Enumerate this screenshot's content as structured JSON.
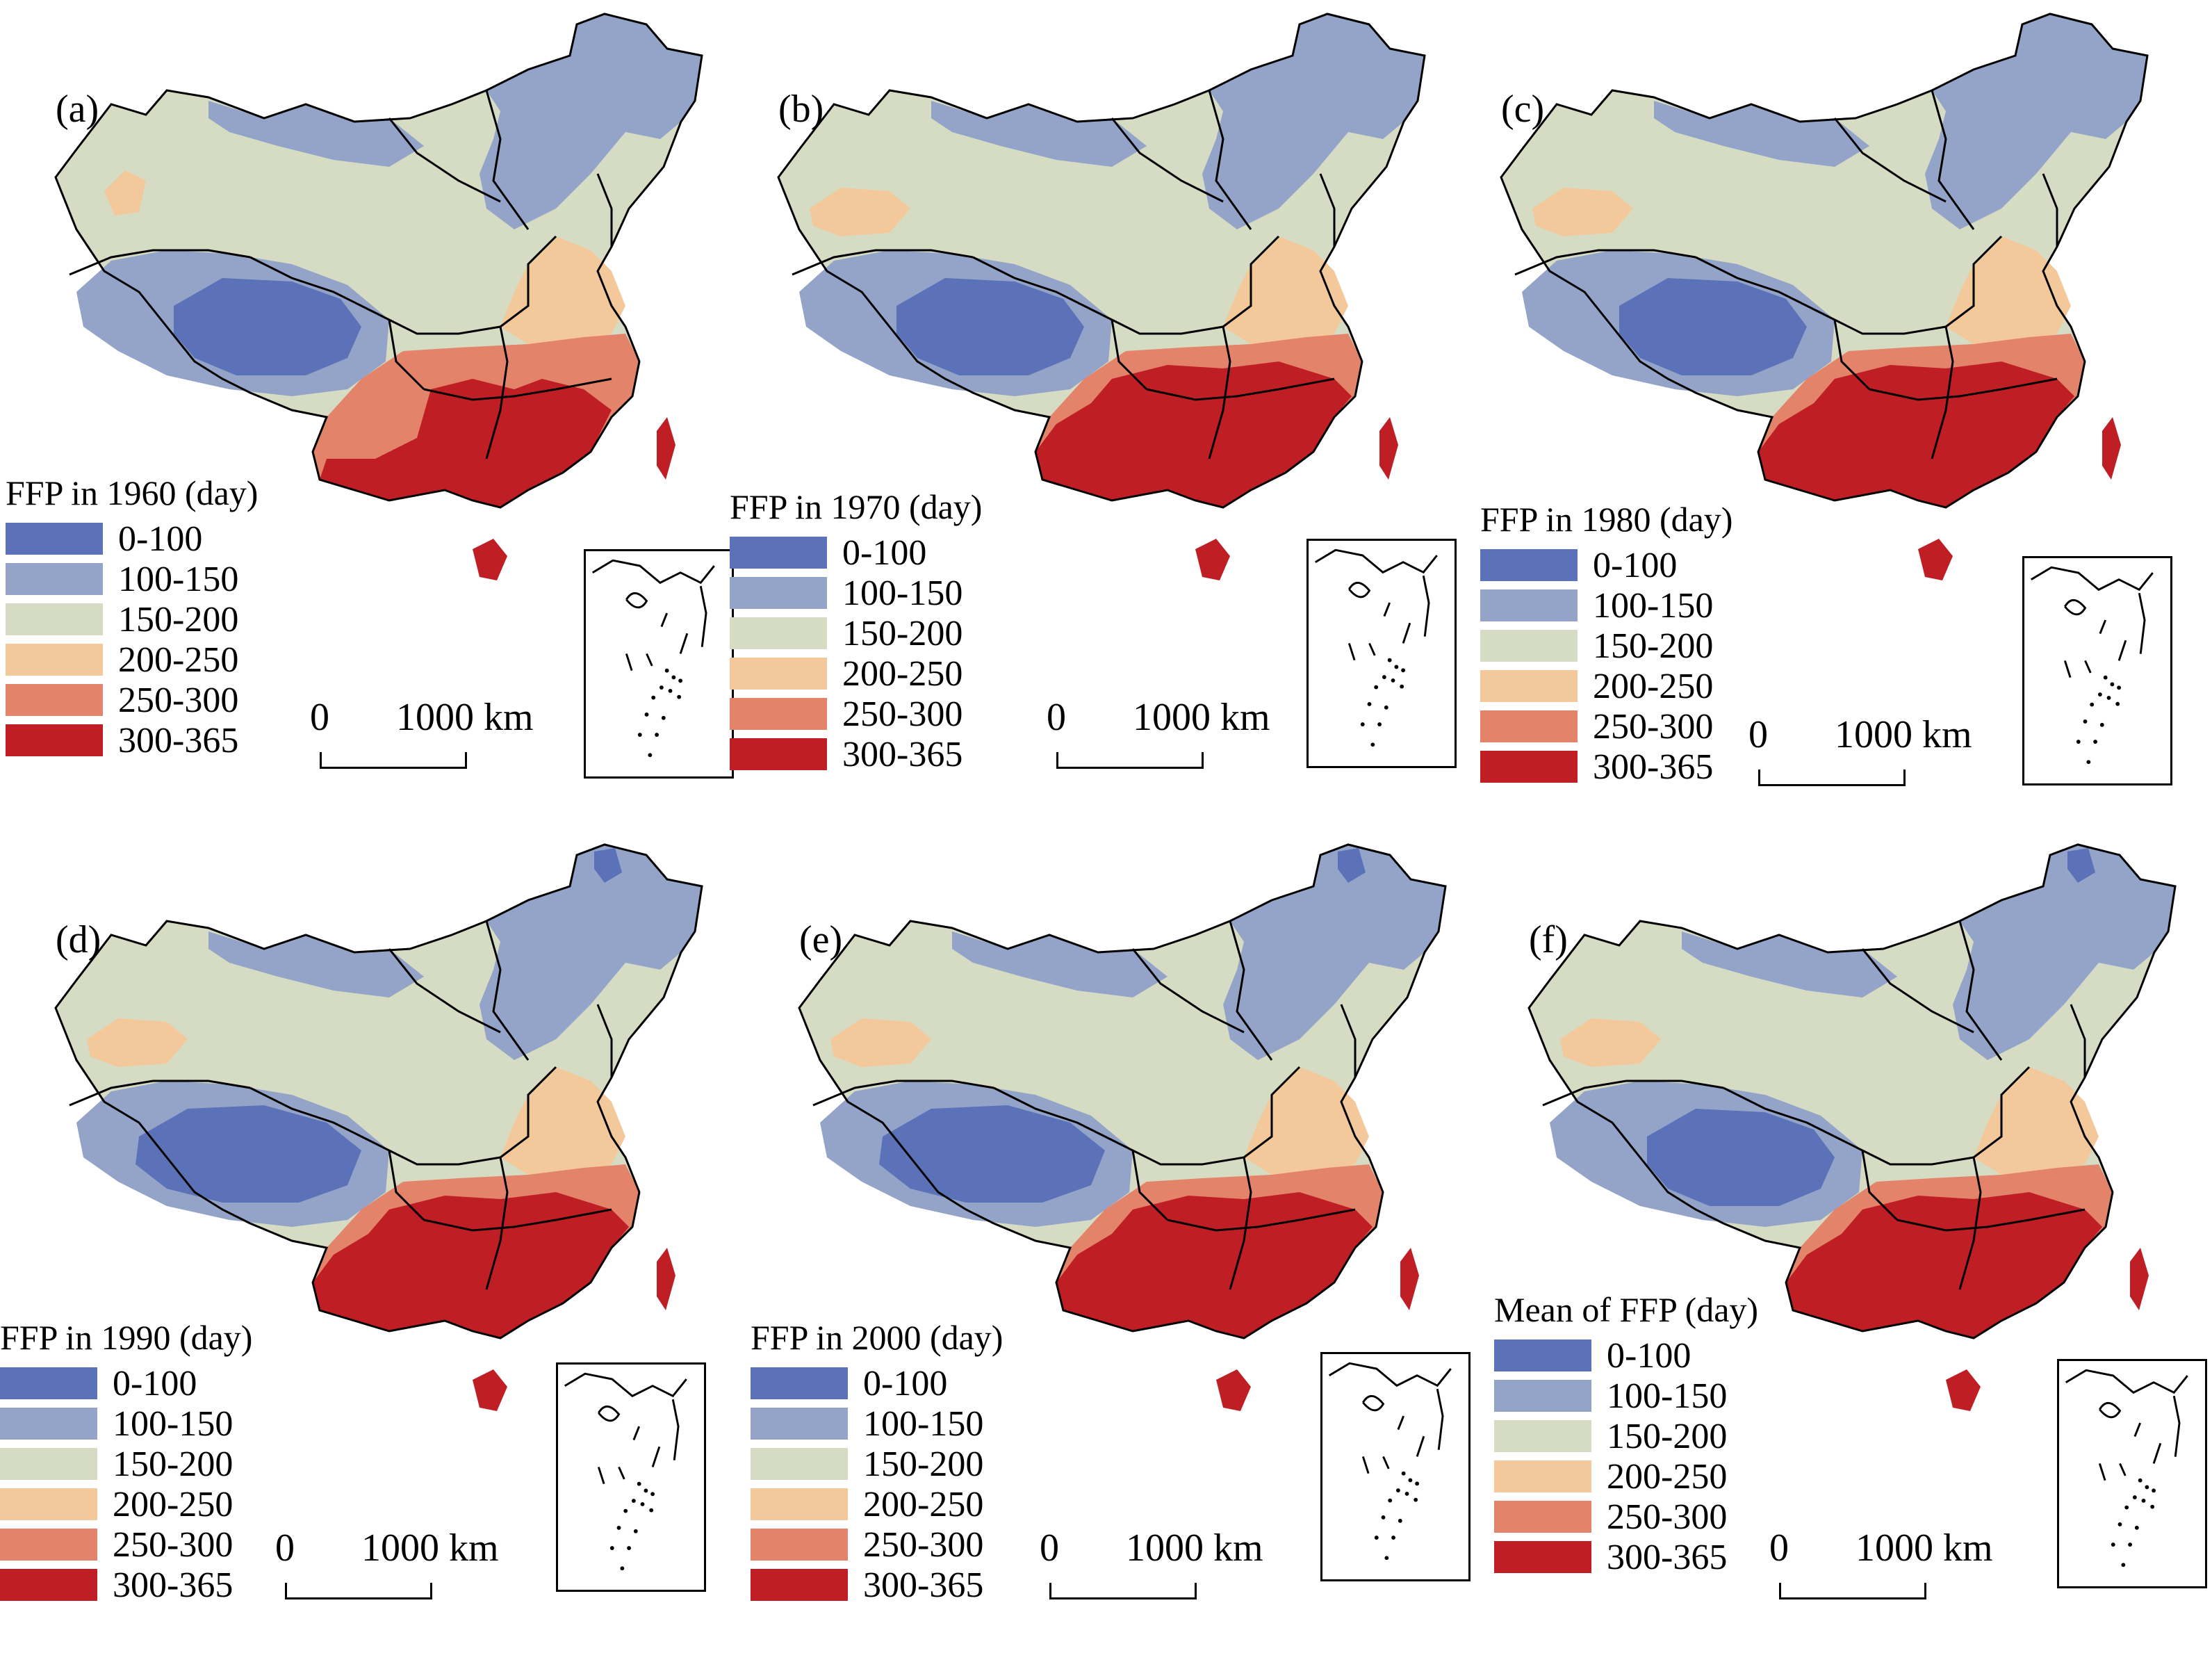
{
  "legend_classes": [
    {
      "label": "0-100",
      "color": "#5b72b8"
    },
    {
      "label": "100-150",
      "color": "#93a4c8"
    },
    {
      "label": "150-200",
      "color": "#d6dcc4"
    },
    {
      "label": "200-250",
      "color": "#f3c89b"
    },
    {
      "label": "250-300",
      "color": "#e3836a"
    },
    {
      "label": "300-365",
      "color": "#bf1e25"
    }
  ],
  "scale_bar": {
    "zero": "0",
    "distance": "1000 km"
  },
  "panels": [
    {
      "label": "(a)",
      "legend_title": "FFP in 1960 (day)"
    },
    {
      "label": "(b)",
      "legend_title": "FFP in 1970 (day)"
    },
    {
      "label": "(c)",
      "legend_title": "FFP in 1980 (day)"
    },
    {
      "label": "(d)",
      "legend_title": "FFP in 1990 (day)"
    },
    {
      "label": "(e)",
      "legend_title": "FFP in 2000 (day)"
    },
    {
      "label": "(f)",
      "legend_title": "Mean of FFP (day)"
    }
  ]
}
